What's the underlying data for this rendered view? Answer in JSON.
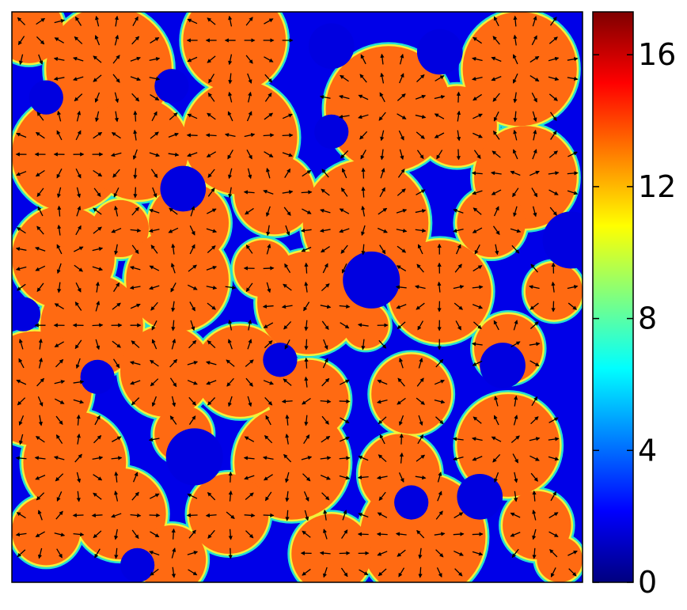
{
  "chart_data": {
    "type": "heatmap",
    "title": "",
    "xlabel": "",
    "ylabel": "",
    "colormap": "jet",
    "vmin": 0,
    "vmax": 17.3,
    "colorbar": {
      "ticks": [
        0,
        4,
        8,
        12,
        16
      ],
      "tick_labels": [
        "0",
        "4",
        "8",
        "12",
        "16"
      ]
    },
    "background_value": 0.6,
    "droplet_value": 14.5,
    "grid_size": [
      1,
      1
    ],
    "droplets": [
      {
        "x": 0.03,
        "y": 0.03,
        "r": 0.06
      },
      {
        "x": 0.17,
        "y": 0.1,
        "r": 0.11
      },
      {
        "x": 0.39,
        "y": 0.05,
        "r": 0.09
      },
      {
        "x": 0.66,
        "y": 0.17,
        "r": 0.11
      },
      {
        "x": 0.89,
        "y": 0.1,
        "r": 0.1
      },
      {
        "x": 0.1,
        "y": 0.25,
        "r": 0.1
      },
      {
        "x": 0.22,
        "y": 0.24,
        "r": 0.09
      },
      {
        "x": 0.4,
        "y": 0.22,
        "r": 0.1
      },
      {
        "x": 0.78,
        "y": 0.2,
        "r": 0.07
      },
      {
        "x": 0.9,
        "y": 0.29,
        "r": 0.09
      },
      {
        "x": 0.62,
        "y": 0.37,
        "r": 0.11
      },
      {
        "x": 0.46,
        "y": 0.32,
        "r": 0.07
      },
      {
        "x": 0.31,
        "y": 0.37,
        "r": 0.07
      },
      {
        "x": 0.09,
        "y": 0.43,
        "r": 0.09
      },
      {
        "x": 0.19,
        "y": 0.38,
        "r": 0.05
      },
      {
        "x": 0.29,
        "y": 0.47,
        "r": 0.09
      },
      {
        "x": 0.44,
        "y": 0.45,
        "r": 0.05
      },
      {
        "x": 0.52,
        "y": 0.51,
        "r": 0.09
      },
      {
        "x": 0.75,
        "y": 0.49,
        "r": 0.09
      },
      {
        "x": 0.84,
        "y": 0.37,
        "r": 0.06
      },
      {
        "x": 0.95,
        "y": 0.49,
        "r": 0.05
      },
      {
        "x": 0.14,
        "y": 0.55,
        "r": 0.09
      },
      {
        "x": 0.04,
        "y": 0.66,
        "r": 0.1
      },
      {
        "x": 0.27,
        "y": 0.63,
        "r": 0.08
      },
      {
        "x": 0.4,
        "y": 0.63,
        "r": 0.08
      },
      {
        "x": 0.52,
        "y": 0.68,
        "r": 0.07
      },
      {
        "x": 0.7,
        "y": 0.67,
        "r": 0.07
      },
      {
        "x": 0.87,
        "y": 0.59,
        "r": 0.06
      },
      {
        "x": 0.62,
        "y": 0.55,
        "r": 0.04
      },
      {
        "x": 0.11,
        "y": 0.79,
        "r": 0.09
      },
      {
        "x": 0.3,
        "y": 0.74,
        "r": 0.05
      },
      {
        "x": 0.49,
        "y": 0.79,
        "r": 0.1
      },
      {
        "x": 0.68,
        "y": 0.81,
        "r": 0.07
      },
      {
        "x": 0.87,
        "y": 0.76,
        "r": 0.09
      },
      {
        "x": 0.19,
        "y": 0.88,
        "r": 0.08
      },
      {
        "x": 0.38,
        "y": 0.88,
        "r": 0.07
      },
      {
        "x": 0.72,
        "y": 0.92,
        "r": 0.11
      },
      {
        "x": 0.92,
        "y": 0.9,
        "r": 0.06
      },
      {
        "x": 0.06,
        "y": 0.91,
        "r": 0.06
      },
      {
        "x": 0.28,
        "y": 0.96,
        "r": 0.06
      },
      {
        "x": 0.56,
        "y": 0.95,
        "r": 0.07
      },
      {
        "x": 0.96,
        "y": 0.96,
        "r": 0.04
      }
    ],
    "voids": [
      {
        "x": 0.06,
        "y": 0.15,
        "r": 0.03
      },
      {
        "x": 0.56,
        "y": 0.06,
        "r": 0.04
      },
      {
        "x": 0.75,
        "y": 0.07,
        "r": 0.04
      },
      {
        "x": 0.28,
        "y": 0.13,
        "r": 0.03
      },
      {
        "x": 0.56,
        "y": 0.21,
        "r": 0.03
      },
      {
        "x": 0.3,
        "y": 0.31,
        "r": 0.04
      },
      {
        "x": 0.98,
        "y": 0.4,
        "r": 0.05
      },
      {
        "x": 0.63,
        "y": 0.47,
        "r": 0.05
      },
      {
        "x": 0.86,
        "y": 0.62,
        "r": 0.04
      },
      {
        "x": 0.15,
        "y": 0.64,
        "r": 0.03
      },
      {
        "x": 0.32,
        "y": 0.78,
        "r": 0.05
      },
      {
        "x": 0.47,
        "y": 0.61,
        "r": 0.03
      },
      {
        "x": 0.82,
        "y": 0.85,
        "r": 0.04
      },
      {
        "x": 0.22,
        "y": 0.97,
        "r": 0.03
      },
      {
        "x": 0.7,
        "y": 0.86,
        "r": 0.03
      },
      {
        "x": 0.02,
        "y": 0.53,
        "r": 0.03
      }
    ],
    "quiver": {
      "spacing": 0.0333,
      "direction": "radial-outward-from-droplet-centers",
      "color": "#000000"
    }
  }
}
